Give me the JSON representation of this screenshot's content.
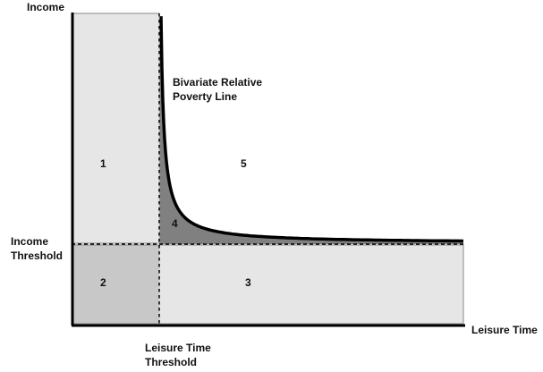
{
  "axes": {
    "y_label": "Income",
    "x_label": "Leisure Time"
  },
  "thresholds": {
    "income": [
      "Income",
      "Threshold"
    ],
    "leisure": [
      "Leisure Time",
      "Threshold"
    ]
  },
  "curve_label": [
    "Bivariate Relative",
    "Poverty Line"
  ],
  "regions": [
    "1",
    "2",
    "3",
    "4",
    "5"
  ]
}
